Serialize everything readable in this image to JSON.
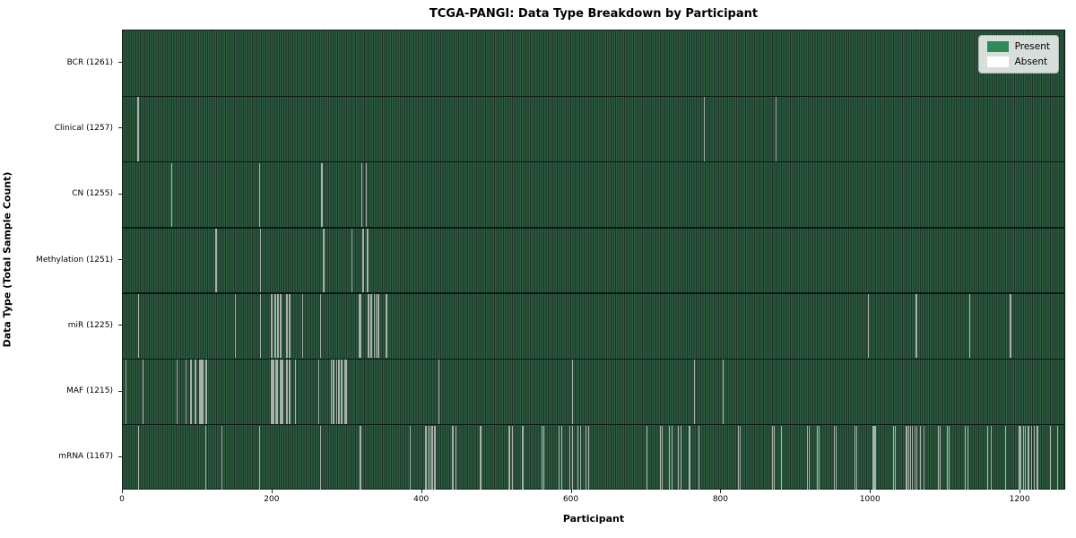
{
  "title": "TCGA-PANGI: Data Type Breakdown by Participant",
  "chart_data": {
    "type": "heatmap",
    "title": "TCGA-PANGI: Data Type Breakdown by Participant",
    "xlabel": "Participant",
    "ylabel": "Data Type (Total Sample Count)",
    "x_range": [
      0,
      1261
    ],
    "x_ticks": [
      0,
      200,
      400,
      600,
      800,
      1000,
      1200
    ],
    "grid": false,
    "legend_position": "upper right",
    "legend": [
      {
        "label": "Present",
        "color": "#2e8b57"
      },
      {
        "label": "Absent",
        "color": "#ffffff"
      }
    ],
    "colors": {
      "present_fill": "#2d5c40",
      "present_edge": "#1b3527",
      "absent_line": "#a9b2aa",
      "row_separator": "#05120b"
    },
    "rows": [
      {
        "label": "BCR (1261)",
        "total": 1261,
        "absent_participants": []
      },
      {
        "label": "Clinical (1257)",
        "total": 1257,
        "absent_participants": [
          19,
          20,
          777,
          873
        ]
      },
      {
        "label": "CN (1255)",
        "total": 1255,
        "absent_participants": [
          65,
          182,
          265,
          266,
          319,
          325
        ]
      },
      {
        "label": "Methylation (1251)",
        "total": 1251,
        "absent_participants": [
          123,
          124,
          183,
          267,
          268,
          306,
          320,
          321,
          326,
          327
        ]
      },
      {
        "label": "miR (1225)",
        "total": 1225,
        "absent_participants": [
          20,
          150,
          183,
          198,
          199,
          203,
          204,
          206,
          207,
          210,
          211,
          218,
          219,
          222,
          223,
          240,
          264,
          315,
          316,
          318,
          327,
          328,
          331,
          332,
          336,
          338,
          341,
          342,
          351,
          352,
          996,
          1060,
          1061,
          1132,
          1186,
          1187
        ]
      },
      {
        "label": "MAF (1215)",
        "total": 1215,
        "absent_participants": [
          4,
          26,
          72,
          84,
          90,
          91,
          96,
          97,
          102,
          103,
          104,
          106,
          110,
          111,
          198,
          199,
          200,
          201,
          204,
          205,
          206,
          210,
          211,
          212,
          213,
          218,
          219,
          222,
          223,
          230,
          261,
          278,
          281,
          282,
          285,
          288,
          289,
          291,
          292,
          296,
          297,
          298,
          422,
          600,
          763,
          802
        ]
      },
      {
        "label": "mRNA (1167)",
        "total": 1167,
        "absent_participants": [
          20,
          110,
          132,
          182,
          264,
          316,
          317,
          384,
          404,
          405,
          408,
          410,
          412,
          414,
          416,
          417,
          440,
          441,
          445,
          477,
          478,
          516,
          517,
          520,
          534,
          535,
          560,
          562,
          582,
          583,
          586,
          597,
          600,
          608,
          611,
          618,
          619,
          622,
          700,
          718,
          720,
          730,
          733,
          742,
          745,
          756,
          758,
          770,
          822,
          825,
          868,
          870,
          880,
          915,
          917,
          928,
          930,
          951,
          953,
          978,
          980,
          1002,
          1003,
          1005,
          1030,
          1032,
          1047,
          1050,
          1052,
          1055,
          1058,
          1061,
          1066,
          1070,
          1089,
          1092,
          1101,
          1104,
          1126,
          1129,
          1155,
          1156,
          1160,
          1179,
          1198,
          1200,
          1203,
          1206,
          1210,
          1214,
          1218,
          1222,
          1239,
          1249
        ]
      }
    ]
  }
}
